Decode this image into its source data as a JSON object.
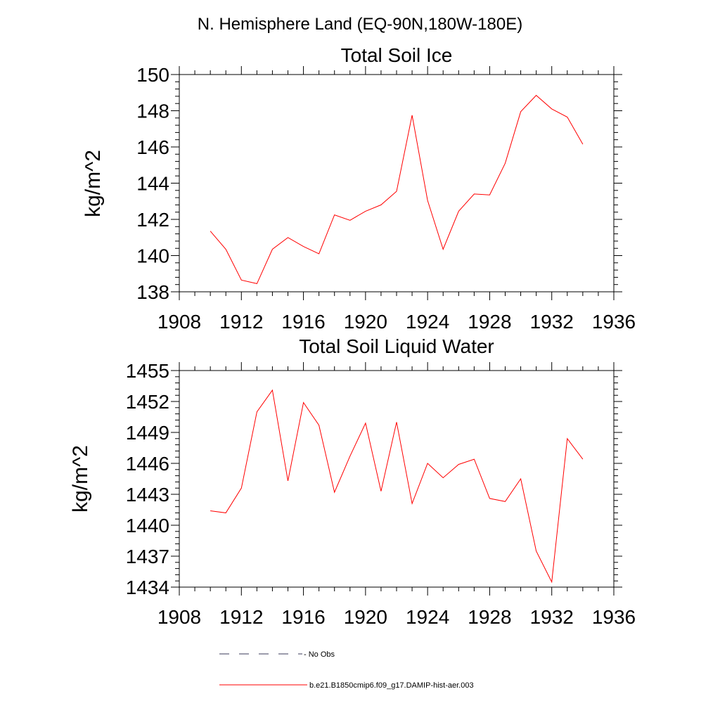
{
  "figure": {
    "supertitle": "N. Hemisphere Land (EQ-90N,180W-180E)",
    "legend": [
      {
        "label": "- No Obs",
        "style": "dashed",
        "color": "#3a3a5a"
      },
      {
        "label": "b.e21.B1850cmip6.f09_g17.DAMIP-hist-aer.003",
        "style": "solid",
        "color": "#ff0000"
      }
    ]
  },
  "chart_data": [
    {
      "type": "line",
      "title": "Total Soil Ice",
      "xlabel": "",
      "ylabel": "kg/m^2",
      "xlim": [
        1908,
        1936
      ],
      "ylim": [
        138,
        150
      ],
      "xticks": [
        1908,
        1912,
        1916,
        1920,
        1924,
        1928,
        1932,
        1936
      ],
      "yticks": [
        138,
        140,
        142,
        144,
        146,
        148,
        150
      ],
      "x": [
        1910,
        1911,
        1912,
        1913,
        1914,
        1915,
        1916,
        1917,
        1918,
        1919,
        1920,
        1921,
        1922,
        1923,
        1924,
        1925,
        1926,
        1927,
        1928,
        1929,
        1930,
        1931,
        1932,
        1933,
        1934
      ],
      "series": [
        {
          "color": "#ff0000",
          "values": [
            141.35,
            140.35,
            138.65,
            138.45,
            140.35,
            141.0,
            140.5,
            140.1,
            142.25,
            141.95,
            142.45,
            142.8,
            143.55,
            147.75,
            143.05,
            140.35,
            142.45,
            143.4,
            143.35,
            145.1,
            147.95,
            148.85,
            148.1,
            147.65,
            146.15
          ]
        }
      ]
    },
    {
      "type": "line",
      "title": "Total Soil Liquid Water",
      "xlabel": "",
      "ylabel": "kg/m^2",
      "xlim": [
        1908,
        1936
      ],
      "ylim": [
        1434,
        1455
      ],
      "xticks": [
        1908,
        1912,
        1916,
        1920,
        1924,
        1928,
        1932,
        1936
      ],
      "yticks": [
        1434,
        1437,
        1440,
        1443,
        1446,
        1449,
        1452,
        1455
      ],
      "x": [
        1910,
        1911,
        1912,
        1913,
        1914,
        1915,
        1916,
        1917,
        1918,
        1919,
        1920,
        1921,
        1922,
        1923,
        1924,
        1925,
        1926,
        1927,
        1928,
        1929,
        1930,
        1931,
        1932,
        1933,
        1934
      ],
      "series": [
        {
          "color": "#ff0000",
          "values": [
            1441.4,
            1441.2,
            1443.6,
            1451.0,
            1453.1,
            1444.3,
            1451.9,
            1449.7,
            1443.2,
            1446.7,
            1449.9,
            1443.3,
            1450.0,
            1442.1,
            1446.0,
            1444.6,
            1445.9,
            1446.4,
            1442.6,
            1442.3,
            1444.5,
            1437.5,
            1434.5,
            1448.4,
            1446.4
          ]
        }
      ]
    }
  ]
}
